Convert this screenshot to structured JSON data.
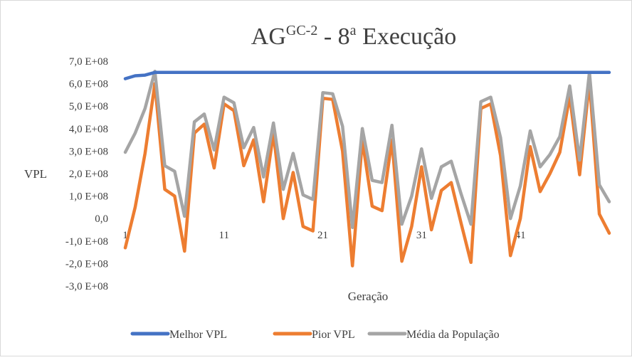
{
  "chart_data": {
    "type": "line",
    "title": "AG",
    "title_sup": "GC-2",
    "title_rest": " - 8",
    "title_ordinal": "a",
    "title_tail": " Execução",
    "xlabel": "Geração",
    "ylabel": "VPL",
    "ylim": [
      -300000000,
      700000000
    ],
    "yticks": [
      700000000,
      600000000,
      500000000,
      400000000,
      300000000,
      200000000,
      100000000,
      0,
      -100000000,
      -200000000,
      -300000000
    ],
    "ytick_labels": [
      "7,0 E+08",
      "6,0 E+08",
      "5,0 E+08",
      "4,0 E+08",
      "3,0 E+08",
      "2,0 E+08",
      "1,0 E+08",
      "0,0",
      "-1,0 E+08",
      "-2,0 E+08",
      "-3,0 E+08"
    ],
    "xlim": [
      1,
      50
    ],
    "xticks": [
      1,
      11,
      21,
      31,
      41
    ],
    "xtick_labels": [
      "1",
      "11",
      "21",
      "31",
      "41"
    ],
    "grid": false,
    "legend_position": "bottom",
    "x": [
      1,
      2,
      3,
      4,
      5,
      6,
      7,
      8,
      9,
      10,
      11,
      12,
      13,
      14,
      15,
      16,
      17,
      18,
      19,
      20,
      21,
      22,
      23,
      24,
      25,
      26,
      27,
      28,
      29,
      30,
      31,
      32,
      33,
      34,
      35,
      36,
      37,
      38,
      39,
      40,
      41,
      42,
      43,
      44,
      45,
      46,
      47,
      48,
      49,
      50
    ],
    "series": [
      {
        "name": "Melhor VPL",
        "color": "#4472C4",
        "values": [
          622000000,
          635000000,
          638000000,
          650000000,
          650000000,
          650000000,
          650000000,
          650000000,
          650000000,
          650000000,
          650000000,
          650000000,
          650000000,
          650000000,
          650000000,
          650000000,
          650000000,
          650000000,
          650000000,
          650000000,
          650000000,
          650000000,
          650000000,
          650000000,
          650000000,
          650000000,
          650000000,
          650000000,
          650000000,
          650000000,
          650000000,
          650000000,
          650000000,
          650000000,
          650000000,
          650000000,
          650000000,
          650000000,
          650000000,
          650000000,
          650000000,
          650000000,
          650000000,
          650000000,
          650000000,
          650000000,
          650000000,
          650000000,
          650000000,
          650000000
        ]
      },
      {
        "name": "Pior VPL",
        "color": "#ED7D31",
        "values": [
          -130000000,
          50000000,
          290000000,
          600000000,
          130000000,
          100000000,
          -145000000,
          380000000,
          420000000,
          225000000,
          510000000,
          480000000,
          235000000,
          350000000,
          75000000,
          380000000,
          0,
          205000000,
          -35000000,
          -55000000,
          535000000,
          530000000,
          300000000,
          -210000000,
          350000000,
          55000000,
          35000000,
          350000000,
          -190000000,
          -35000000,
          230000000,
          -50000000,
          125000000,
          160000000,
          -20000000,
          -195000000,
          490000000,
          510000000,
          280000000,
          -165000000,
          0,
          320000000,
          120000000,
          200000000,
          295000000,
          545000000,
          195000000,
          610000000,
          20000000,
          -65000000
        ]
      },
      {
        "name": "Média da População",
        "color": "#A5A5A5",
        "values": [
          295000000,
          380000000,
          490000000,
          655000000,
          235000000,
          210000000,
          10000000,
          430000000,
          465000000,
          305000000,
          540000000,
          515000000,
          315000000,
          405000000,
          185000000,
          425000000,
          130000000,
          290000000,
          105000000,
          85000000,
          560000000,
          555000000,
          410000000,
          -40000000,
          400000000,
          170000000,
          160000000,
          415000000,
          -25000000,
          100000000,
          310000000,
          90000000,
          230000000,
          255000000,
          110000000,
          -25000000,
          520000000,
          540000000,
          360000000,
          0,
          145000000,
          390000000,
          230000000,
          285000000,
          365000000,
          590000000,
          260000000,
          650000000,
          150000000,
          75000000
        ]
      }
    ]
  }
}
